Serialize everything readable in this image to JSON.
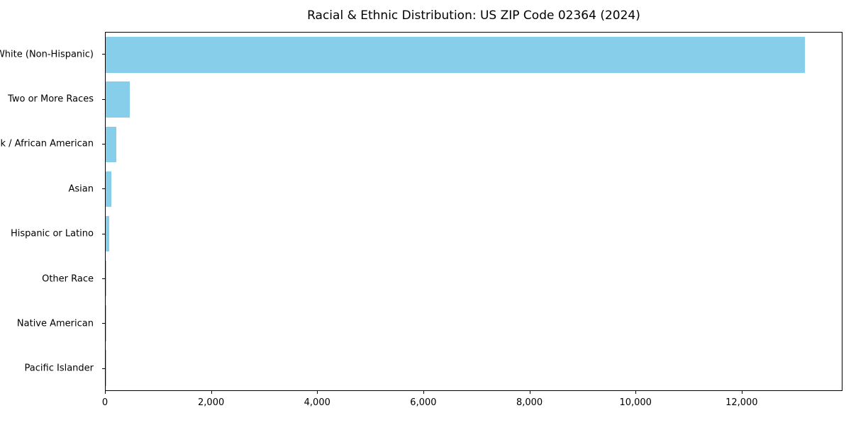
{
  "chart_data": {
    "type": "bar",
    "orientation": "horizontal",
    "title": "Racial & Ethnic Distribution: US ZIP Code 02364 (2024)",
    "categories": [
      "White (Non-Hispanic)",
      "Two or More Races",
      "Black / African American",
      "Asian",
      "Hispanic or Latino",
      "Other Race",
      "Native American",
      "Pacific Islander"
    ],
    "values": [
      13200,
      450,
      200,
      110,
      70,
      10,
      5,
      2
    ],
    "xlabel": "",
    "ylabel": "",
    "xlim": [
      0,
      13900
    ],
    "xticks": [
      0,
      2000,
      4000,
      6000,
      8000,
      10000,
      12000
    ],
    "xtick_labels": [
      "0",
      "2,000",
      "4,000",
      "6,000",
      "8,000",
      "10,000",
      "12,000"
    ],
    "bar_color": "#87CEEB",
    "grid": false,
    "legend": "none",
    "plot_border": true
  }
}
